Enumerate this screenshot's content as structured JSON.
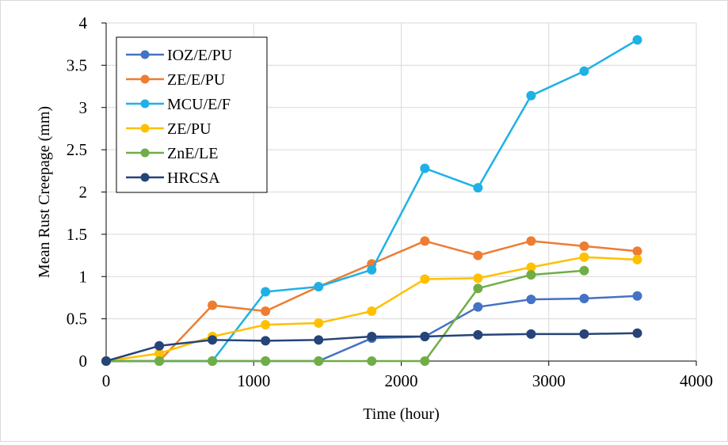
{
  "chart_data": {
    "type": "line",
    "title": "",
    "xlabel": "Time (hour)",
    "ylabel": "Mean Rust Creepage (mm)",
    "xlim": [
      0,
      4000
    ],
    "ylim": [
      0,
      4
    ],
    "x_ticks": [
      0,
      1000,
      2000,
      3000,
      4000
    ],
    "y_ticks": [
      0,
      0.5,
      1,
      1.5,
      2,
      2.5,
      3,
      3.5,
      4
    ],
    "grid": true,
    "legend_position": "top-left",
    "series": [
      {
        "name": "IOZ/E/PU",
        "color": "#4472C4",
        "x": [
          0,
          360,
          720,
          1080,
          1440,
          1800,
          2160,
          2520,
          2880,
          3240,
          3600
        ],
        "y": [
          0,
          0,
          0,
          0,
          0,
          0.27,
          0.29,
          0.64,
          0.73,
          0.74,
          0.77
        ]
      },
      {
        "name": "ZE/E/PU",
        "color": "#ED7D31",
        "x": [
          0,
          360,
          720,
          1080,
          1440,
          1800,
          2160,
          2520,
          2880,
          3240,
          3600
        ],
        "y": [
          0,
          0,
          0.66,
          0.59,
          0.88,
          1.15,
          1.42,
          1.25,
          1.42,
          1.36,
          1.3
        ]
      },
      {
        "name": "MCU/E/F",
        "color": "#1FB1E6",
        "x": [
          0,
          360,
          720,
          1080,
          1440,
          1800,
          2160,
          2520,
          2880,
          3240,
          3600
        ],
        "y": [
          0,
          0,
          0,
          0.82,
          0.88,
          1.08,
          2.28,
          2.05,
          3.14,
          3.43,
          3.8
        ]
      },
      {
        "name": "ZE/PU",
        "color": "#FFC000",
        "x": [
          0,
          360,
          720,
          1080,
          1440,
          1800,
          2160,
          2520,
          2880,
          3240,
          3600
        ],
        "y": [
          0,
          0.09,
          0.29,
          0.43,
          0.45,
          0.59,
          0.97,
          0.98,
          1.11,
          1.23,
          1.2
        ]
      },
      {
        "name": "ZnE/LE",
        "color": "#70AD47",
        "x": [
          0,
          360,
          720,
          1080,
          1440,
          1800,
          2160,
          2520,
          2880,
          3240
        ],
        "y": [
          0,
          0,
          0,
          0,
          0,
          0,
          0,
          0.86,
          1.02,
          1.07
        ]
      },
      {
        "name": "HRCSA",
        "color": "#264478",
        "x": [
          0,
          360,
          720,
          1080,
          1440,
          1800,
          2160,
          2520,
          2880,
          3240,
          3600
        ],
        "y": [
          0,
          0.18,
          0.25,
          0.24,
          0.25,
          0.29,
          0.29,
          0.31,
          0.32,
          0.32,
          0.33
        ]
      }
    ]
  }
}
